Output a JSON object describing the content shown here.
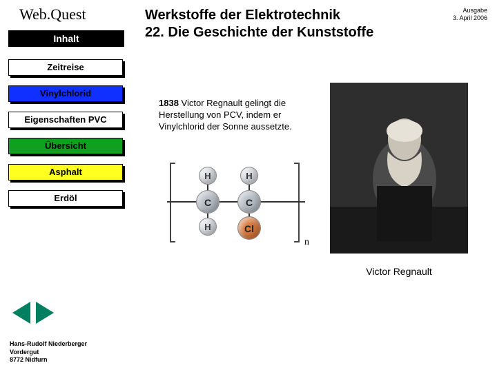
{
  "site_title": "Web.Quest",
  "main_title_line1": "Werkstoffe der Elektrotechnik",
  "main_title_line2": "22. Die Geschichte der Kunststoffe",
  "edition_line1": "Ausgabe",
  "edition_line2": "3. April 2006",
  "sidebar": {
    "heading": "Inhalt",
    "items": [
      {
        "label": "Zeitreise",
        "color": "c-white"
      },
      {
        "label": "Vinylchlorid",
        "color": "c-blue"
      },
      {
        "label": "Eigenschaften PVC",
        "color": "c-white"
      },
      {
        "label": "Übersicht",
        "color": "c-green"
      },
      {
        "label": "Asphalt",
        "color": "c-yellow"
      },
      {
        "label": "Erdöl",
        "color": "c-white"
      }
    ]
  },
  "body": {
    "year": "1838",
    "text": " Victor Regnault gelingt die Herstellung von PCV, indem er Vinylchlorid der Sonne aussetzte."
  },
  "molecule": {
    "atoms": {
      "H": "H",
      "C": "C",
      "Cl": "Cl"
    },
    "subscript": "n"
  },
  "caption": "Victor Regnault",
  "author": {
    "name": "Hans-Rudolf Niederberger",
    "addr1": "Vordergut",
    "addr2": "8772  Nidfurn"
  },
  "colors": {
    "arrow": "#008060"
  }
}
